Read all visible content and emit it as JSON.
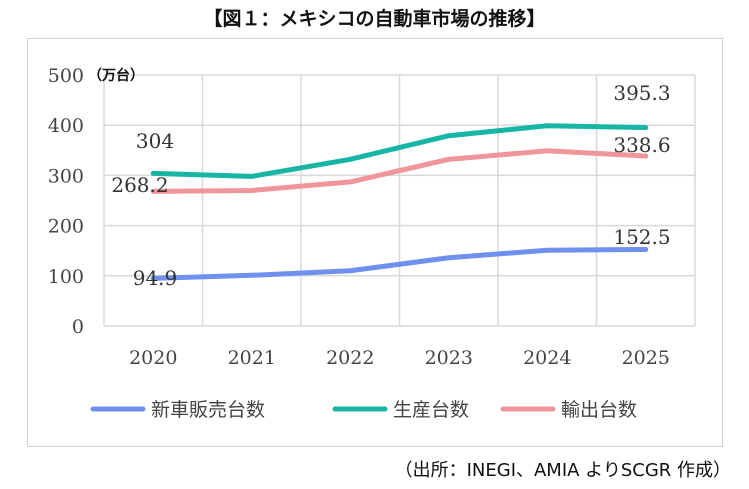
{
  "title": "【図１：メキシコの自動車市場の推移】",
  "source": "（出所：INEGI、AMIA よりSCGR 作成）",
  "chart_data": {
    "type": "line",
    "title": "【図１：メキシコの自動車市場の推移】",
    "ylabel": "（万台）",
    "xlabel": "",
    "categories": [
      "2020",
      "2021",
      "2022",
      "2023",
      "2024",
      "2025"
    ],
    "ylim": [
      0,
      500
    ],
    "yticks": [
      0,
      100,
      200,
      300,
      400,
      500
    ],
    "grid": true,
    "legend": "bottom",
    "series": [
      {
        "name": "新車販売台数",
        "color": "#7090f0",
        "values": [
          94.9,
          101,
          110,
          136,
          151,
          152.5
        ],
        "labels": {
          "0": "94.9",
          "5": "152.5"
        }
      },
      {
        "name": "生産台数",
        "color": "#17b5a5",
        "values": [
          304,
          298,
          332,
          379,
          399,
          395.3
        ],
        "labels": {
          "0": "304",
          "5": "395.3"
        }
      },
      {
        "name": "輸出台数",
        "color": "#f0959a",
        "values": [
          268.2,
          270,
          287,
          332,
          349,
          338.6
        ],
        "labels": {
          "0": "268.2",
          "5": "338.6"
        }
      }
    ]
  }
}
